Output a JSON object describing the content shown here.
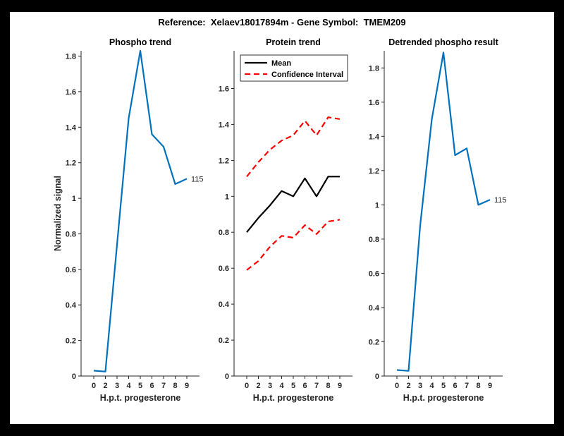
{
  "figure": {
    "title": "Reference:  Xelaev18017894m - Gene Symbol:  TMEM209"
  },
  "colors": {
    "background": "#000000",
    "canvas": "#ffffff",
    "axis": "#262626",
    "blue": "#0072BD",
    "red": "#FF0000",
    "black": "#000000"
  },
  "chart_data": [
    {
      "type": "line",
      "title": "Phospho trend",
      "xlabel": "H.p.t. progesterone",
      "ylabel": "Normalized signal",
      "x_tick_labels": [
        "0",
        "2",
        "3",
        "4",
        "5",
        "6",
        "7",
        "8",
        "9"
      ],
      "y_tick_values": [
        0,
        0.2,
        0.4,
        0.6,
        0.8,
        1,
        1.2,
        1.4,
        1.6,
        1.8
      ],
      "y_tick_labels": [
        "0",
        "0.2",
        "0.4",
        "0.6",
        "0.8",
        "1",
        "1.2",
        "1.4",
        "1.6",
        "1.8"
      ],
      "ylim": [
        0,
        1.83
      ],
      "grid": false,
      "series": [
        {
          "name": "phospho signal",
          "color": "#0072BD",
          "dash": false,
          "values": [
            0.03,
            0.025,
            0.74,
            1.45,
            1.83,
            1.36,
            1.29,
            1.08,
            1.11
          ]
        }
      ],
      "annotation": {
        "text": "115"
      }
    },
    {
      "type": "line",
      "title": "Protein trend",
      "xlabel": "H.p.t. progesterone",
      "ylabel": "",
      "x_tick_labels": [
        "0",
        "2",
        "3",
        "4",
        "5",
        "6",
        "7",
        "8",
        "9"
      ],
      "y_tick_values": [
        0,
        0.2,
        0.4,
        0.6,
        0.8,
        1,
        1.2,
        1.4,
        1.6
      ],
      "y_tick_labels": [
        "0",
        "0.2",
        "0.4",
        "0.6",
        "0.8",
        "1",
        "1.2",
        "1.4",
        "1.6"
      ],
      "ylim": [
        0,
        1.81
      ],
      "grid": false,
      "legend_position": "top-left",
      "legend": [
        {
          "label": "Mean",
          "color": "#000000",
          "dash": false
        },
        {
          "label": "Confidence Interval",
          "color": "#FF0000",
          "dash": true
        }
      ],
      "series": [
        {
          "name": "mean",
          "color": "#000000",
          "dash": false,
          "values": [
            0.8,
            0.88,
            0.95,
            1.03,
            1.0,
            1.1,
            1.0,
            1.11,
            1.11
          ]
        },
        {
          "name": "confidence interval upper",
          "color": "#FF0000",
          "dash": true,
          "values": [
            1.11,
            1.19,
            1.26,
            1.31,
            1.34,
            1.42,
            1.34,
            1.44,
            1.43
          ]
        },
        {
          "name": "confidence interval lower",
          "color": "#FF0000",
          "dash": true,
          "values": [
            0.59,
            0.64,
            0.72,
            0.78,
            0.77,
            0.84,
            0.79,
            0.86,
            0.87
          ]
        }
      ]
    },
    {
      "type": "line",
      "title": "Detrended phospho result",
      "xlabel": "H.p.t. progesterone",
      "ylabel": "",
      "x_tick_labels": [
        "0",
        "2",
        "3",
        "4",
        "5",
        "6",
        "7",
        "8",
        "9"
      ],
      "y_tick_values": [
        0,
        0.2,
        0.4,
        0.6,
        0.8,
        1,
        1.2,
        1.4,
        1.6,
        1.8
      ],
      "y_tick_labels": [
        "0",
        "0.2",
        "0.4",
        "0.6",
        "0.8",
        "1",
        "1.2",
        "1.4",
        "1.6",
        "1.8"
      ],
      "ylim": [
        0,
        1.9
      ],
      "grid": false,
      "series": [
        {
          "name": "detrended phospho signal",
          "color": "#0072BD",
          "dash": false,
          "values": [
            0.035,
            0.03,
            0.88,
            1.5,
            1.89,
            1.29,
            1.33,
            1.0,
            1.03
          ]
        }
      ],
      "annotation": {
        "text": "115"
      }
    }
  ]
}
